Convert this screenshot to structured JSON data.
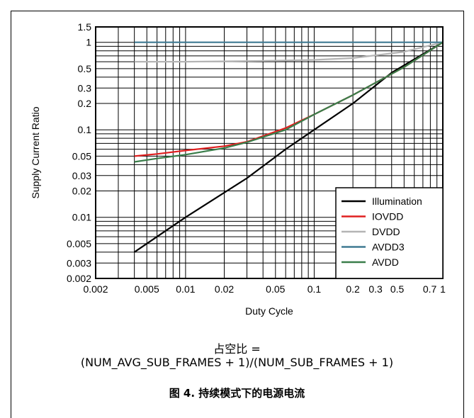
{
  "chart_data": {
    "type": "line",
    "xlabel": "Duty Cycle",
    "ylabel": "Supply Current Ratio",
    "xscale": "log",
    "yscale": "log",
    "xlim": [
      0.002,
      1
    ],
    "ylim": [
      0.002,
      1.5
    ],
    "x_ticks": [
      {
        "v": 0.002,
        "label": "0.002"
      },
      {
        "v": 0.005,
        "label": "0.005"
      },
      {
        "v": 0.01,
        "label": "0.01"
      },
      {
        "v": 0.02,
        "label": "0.02"
      },
      {
        "v": 0.05,
        "label": "0.05"
      },
      {
        "v": 0.1,
        "label": "0.1"
      },
      {
        "v": 0.2,
        "label": "0.2"
      },
      {
        "v": 0.3,
        "label": "0.3"
      },
      {
        "v": 0.5,
        "label": "0.5"
      },
      {
        "v": 0.7,
        "label": "0.7"
      },
      {
        "v": 1,
        "label": "1"
      }
    ],
    "y_ticks": [
      {
        "v": 0.002,
        "label": "0.002"
      },
      {
        "v": 0.003,
        "label": "0.003"
      },
      {
        "v": 0.005,
        "label": "0.005"
      },
      {
        "v": 0.01,
        "label": "0.01"
      },
      {
        "v": 0.02,
        "label": "0.02"
      },
      {
        "v": 0.03,
        "label": "0.03"
      },
      {
        "v": 0.05,
        "label": "0.05"
      },
      {
        "v": 0.1,
        "label": "0.1"
      },
      {
        "v": 0.2,
        "label": "0.2"
      },
      {
        "v": 0.3,
        "label": "0.3"
      },
      {
        "v": 0.5,
        "label": "0.5"
      },
      {
        "v": 1,
        "label": "1"
      },
      {
        "v": 1.5,
        "label": "1.5"
      }
    ],
    "grid": true,
    "legend_position": "bottom-right",
    "series": [
      {
        "name": "Illumination",
        "color": "#000000",
        "points": [
          [
            0.004,
            0.004
          ],
          [
            0.01,
            0.01
          ],
          [
            0.03,
            0.028
          ],
          [
            0.06,
            0.06
          ],
          [
            0.1,
            0.1
          ],
          [
            0.2,
            0.2
          ],
          [
            0.4,
            0.45
          ],
          [
            1,
            1
          ]
        ]
      },
      {
        "name": "IOVDD",
        "color": "#e02020",
        "points": [
          [
            0.004,
            0.05
          ],
          [
            0.006,
            0.053
          ],
          [
            0.01,
            0.058
          ],
          [
            0.02,
            0.065
          ],
          [
            0.03,
            0.073
          ],
          [
            0.06,
            0.105
          ],
          [
            0.1,
            0.15
          ],
          [
            0.2,
            0.25
          ],
          [
            0.5,
            0.52
          ],
          [
            1,
            1
          ]
        ]
      },
      {
        "name": "DVDD",
        "color": "#b4b4b4",
        "points": [
          [
            0.004,
            0.6
          ],
          [
            0.01,
            0.6
          ],
          [
            0.03,
            0.61
          ],
          [
            0.06,
            0.62
          ],
          [
            0.1,
            0.63
          ],
          [
            0.2,
            0.66
          ],
          [
            0.5,
            0.78
          ],
          [
            1,
            1
          ]
        ]
      },
      {
        "name": "AVDD3",
        "color": "#3f7a92",
        "points": [
          [
            0.004,
            1
          ],
          [
            0.03,
            1
          ],
          [
            0.1,
            1
          ],
          [
            0.3,
            1
          ],
          [
            1,
            1
          ]
        ]
      },
      {
        "name": "AVDD",
        "color": "#3a7d4a",
        "points": [
          [
            0.004,
            0.043
          ],
          [
            0.006,
            0.047
          ],
          [
            0.01,
            0.052
          ],
          [
            0.02,
            0.062
          ],
          [
            0.03,
            0.072
          ],
          [
            0.06,
            0.1
          ],
          [
            0.1,
            0.15
          ],
          [
            0.2,
            0.25
          ],
          [
            0.5,
            0.52
          ],
          [
            1,
            1
          ]
        ]
      }
    ]
  },
  "formula": {
    "line1": "占空比 =",
    "line2": "(NUM_AVG_SUB_FRAMES + 1)/(NUM_SUB_FRAMES + 1)"
  },
  "caption": "图 4. 持续模式下的电源电流"
}
